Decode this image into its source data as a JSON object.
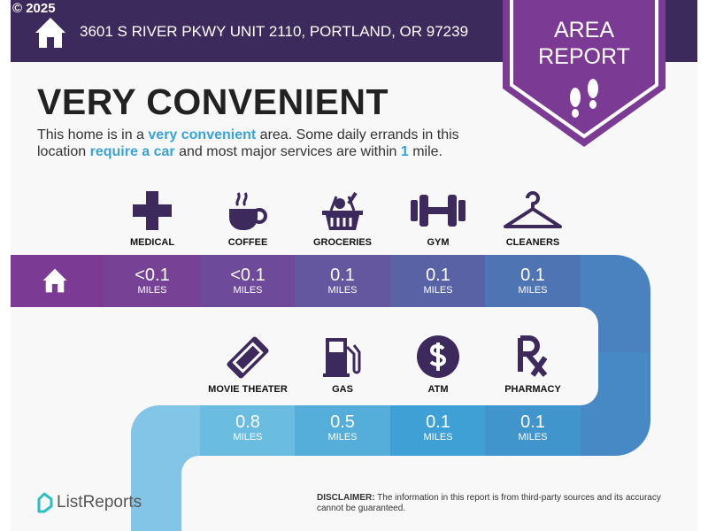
{
  "header": {
    "copyright": "© 2025",
    "address": "3601 S RIVER PKWY UNIT 2110, PORTLAND, OR 97239",
    "badge_line1": "AREA",
    "badge_line2": "REPORT"
  },
  "headline": "VERY CONVENIENT",
  "description": {
    "p1": "This home is in a ",
    "h1": "very convenient",
    "p2": " area. Some daily errands in this location ",
    "h2": "require a car",
    "p3": " and most major services are within ",
    "h3": "1",
    "p4": " mile."
  },
  "top_row": [
    {
      "label": "MEDICAL",
      "value": "<0.1",
      "unit": "MILES",
      "icon": "medical-cross-icon"
    },
    {
      "label": "COFFEE",
      "value": "<0.1",
      "unit": "MILES",
      "icon": "coffee-cup-icon"
    },
    {
      "label": "GROCERIES",
      "value": "0.1",
      "unit": "MILES",
      "icon": "grocery-basket-icon"
    },
    {
      "label": "GYM",
      "value": "0.1",
      "unit": "MILES",
      "icon": "dumbbell-icon"
    },
    {
      "label": "CLEANERS",
      "value": "0.1",
      "unit": "MILES",
      "icon": "hanger-icon"
    }
  ],
  "bottom_row": [
    {
      "label": "MOVIE THEATER",
      "value": "0.8",
      "unit": "MILES",
      "icon": "ticket-icon"
    },
    {
      "label": "GAS",
      "value": "0.5",
      "unit": "MILES",
      "icon": "gas-pump-icon"
    },
    {
      "label": "ATM",
      "value": "0.1",
      "unit": "MILES",
      "icon": "dollar-icon"
    },
    {
      "label": "PHARMACY",
      "value": "0.1",
      "unit": "MILES",
      "icon": "rx-icon"
    }
  ],
  "footer": {
    "logo": "ListReports",
    "disclaimer_label": "DISCLAIMER:",
    "disclaimer_text": " The information in this report is from third-party sources and its accuracy cannot be guaranteed."
  },
  "colors": {
    "header": "#3d2a5c",
    "badge": "#7b3a93",
    "accent": "#3aa3d6",
    "icon": "#3d2a5c"
  }
}
